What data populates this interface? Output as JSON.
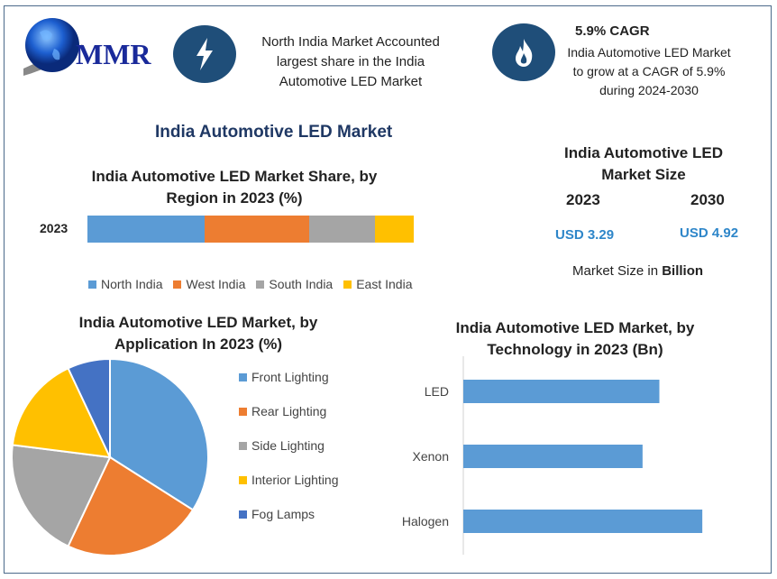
{
  "logo": {
    "text": "MMR"
  },
  "header": {
    "fact1": {
      "icon": "lightning-icon",
      "lines": [
        "North India Market Accounted",
        "largest share in the India",
        "Automotive LED Market"
      ]
    },
    "fact2": {
      "icon": "flame-icon",
      "title": "5.9% CAGR",
      "lines": [
        "India Automotive LED Market",
        "to grow at a CAGR of 5.9%",
        "during 2024-2030"
      ]
    }
  },
  "main_title": "India Automotive LED Market",
  "market_size": {
    "title_lines": [
      "India Automotive LED",
      "Market Size"
    ],
    "years": [
      "2023",
      "2030"
    ],
    "values": [
      "USD 3.29",
      "USD 4.92"
    ],
    "note_prefix": "Market Size in ",
    "note_bold": "Billion",
    "value_color": "#2e86c9"
  },
  "chart_data": [
    {
      "type": "bar",
      "orientation": "horizontal-stacked",
      "title_lines": [
        "India Automotive LED Market Share, by",
        "Region in 2023 (%)"
      ],
      "categories": [
        "2023"
      ],
      "series": [
        {
          "name": "North India",
          "values": [
            36
          ],
          "color": "#5b9bd5"
        },
        {
          "name": "West India",
          "values": [
            32
          ],
          "color": "#ed7d31"
        },
        {
          "name": "South India",
          "values": [
            20
          ],
          "color": "#a5a5a5"
        },
        {
          "name": "East India",
          "values": [
            12
          ],
          "color": "#ffc000"
        }
      ],
      "legend": "bottom"
    },
    {
      "type": "pie",
      "title_lines": [
        "India Automotive LED Market, by",
        "Application In 2023 (%)"
      ],
      "labels": [
        "Front Lighting",
        "Rear Lighting",
        "Side Lighting",
        "Interior Lighting",
        "Fog Lamps"
      ],
      "values": [
        34,
        23,
        20,
        16,
        7
      ],
      "colors": [
        "#5b9bd5",
        "#ed7d31",
        "#a5a5a5",
        "#ffc000",
        "#4472c4"
      ],
      "legend": "right"
    },
    {
      "type": "bar",
      "orientation": "horizontal",
      "title_lines": [
        "India Automotive LED Market, by",
        "Technology in 2023 (Bn)"
      ],
      "categories": [
        "LED",
        "Xenon",
        "Halogen"
      ],
      "values": [
        1.05,
        0.96,
        1.28
      ],
      "color": "#5b9bd5",
      "xlim": [
        0,
        1.4
      ]
    }
  ]
}
